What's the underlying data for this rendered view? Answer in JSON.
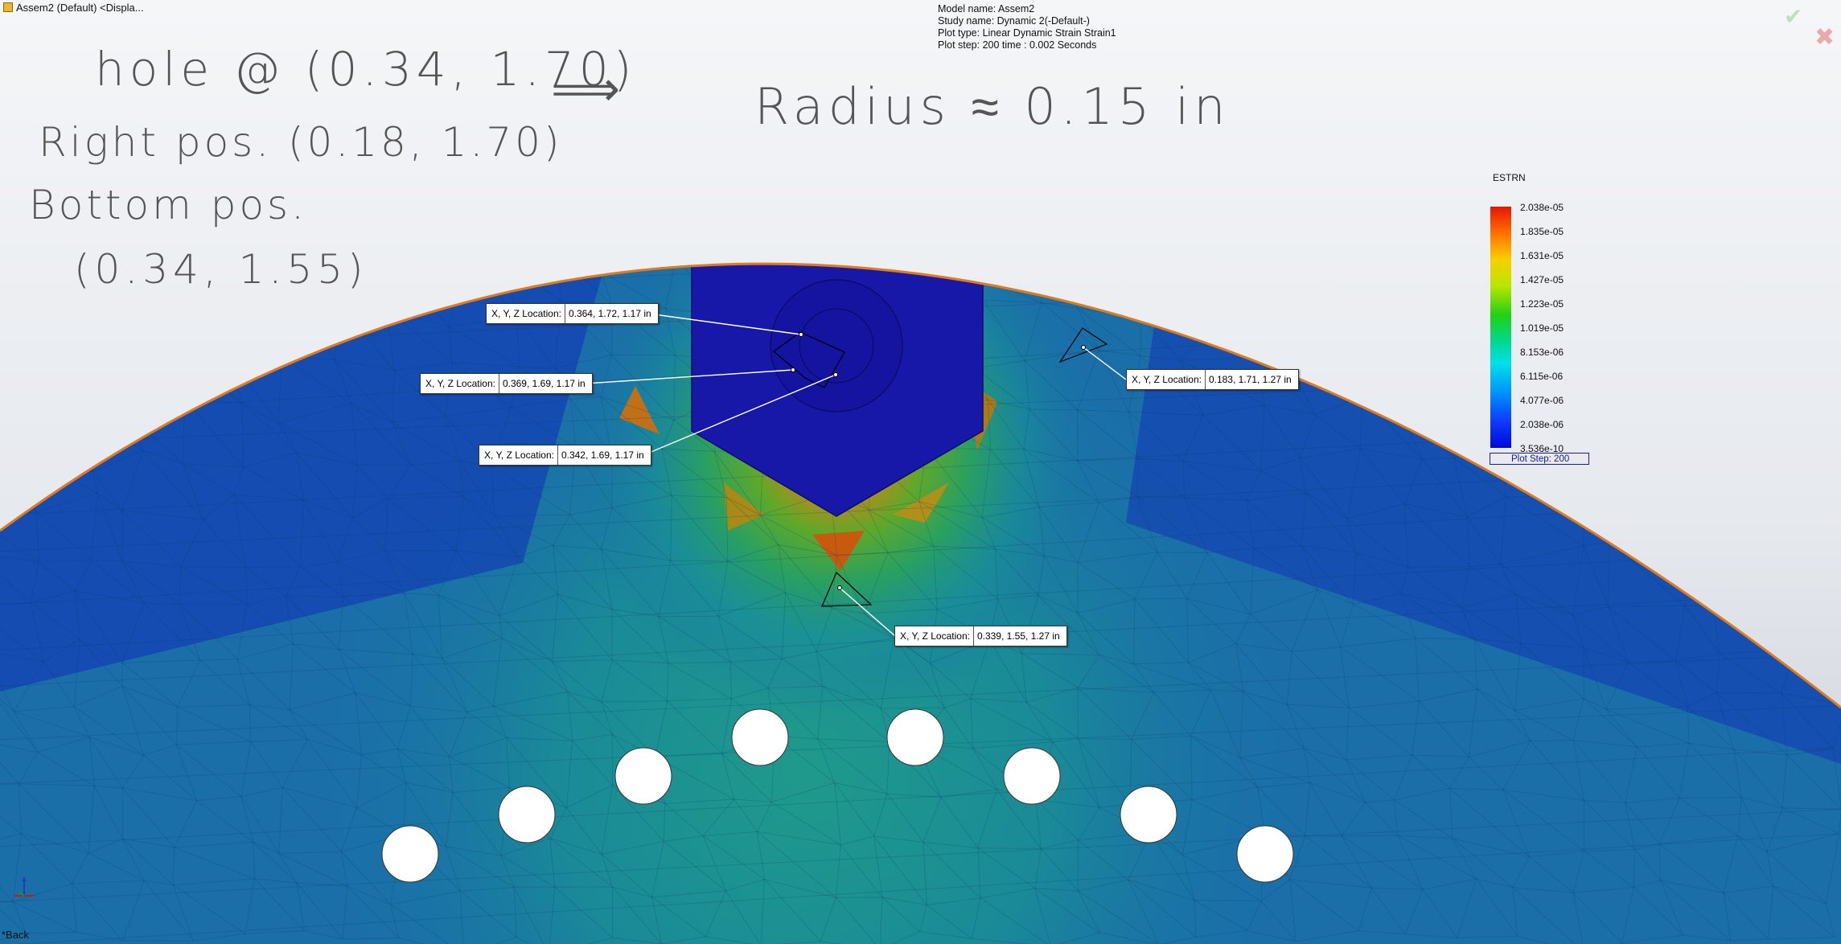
{
  "window": {
    "title": "Assem2 (Default) <Displa..."
  },
  "study_info": {
    "model_name": "Model name: Assem2",
    "study_name": "Study name: Dynamic 2(-Default-)",
    "plot_type": "Plot type: Linear Dynamic Strain Strain1",
    "plot_step": "Plot step: 200   time : 0.002 Seconds"
  },
  "actions": {
    "ok_symbol": "✔",
    "cancel_symbol": "✖"
  },
  "handwritten_notes": {
    "hole": "hole @ (0.34, 1.70)",
    "arrow": "⟹",
    "radius": "Radius ≈ 0.15 in",
    "right_pos": "Right pos. (0.18, 1.70)",
    "bottom_pos": "Bottom pos.",
    "bottom_coords": "(0.34, 1.55)"
  },
  "probes": [
    {
      "label": "X, Y, Z Location:",
      "value": "0.364, 1.72, 1.17 in"
    },
    {
      "label": "X, Y, Z Location:",
      "value": "0.369, 1.69, 1.17 in"
    },
    {
      "label": "X, Y, Z Location:",
      "value": "0.342, 1.69, 1.17 in"
    },
    {
      "label": "X, Y, Z Location:",
      "value": "0.183, 1.71, 1.27 in"
    },
    {
      "label": "X, Y, Z Location:",
      "value": "0.339, 1.55, 1.27 in"
    }
  ],
  "legend": {
    "title": "ESTRN",
    "ticks": [
      "2.038e-05",
      "1.835e-05",
      "1.631e-05",
      "1.427e-05",
      "1.223e-05",
      "1.019e-05",
      "8.153e-06",
      "6.115e-06",
      "4.077e-06",
      "2.038e-06",
      "3.536e-10"
    ],
    "plot_step": "Plot Step: 200"
  },
  "colors": {
    "mesh_base": "#1a6fa8",
    "hex_bolt": "#1818a8",
    "outline": "#e07a20",
    "hot": "#b87818",
    "warm": "#38a838"
  },
  "footer": {
    "back_label": "*Back"
  },
  "icons": [
    "app-part-icon",
    "ok-check-icon",
    "cancel-x-icon",
    "coordinate-triad-icon"
  ]
}
